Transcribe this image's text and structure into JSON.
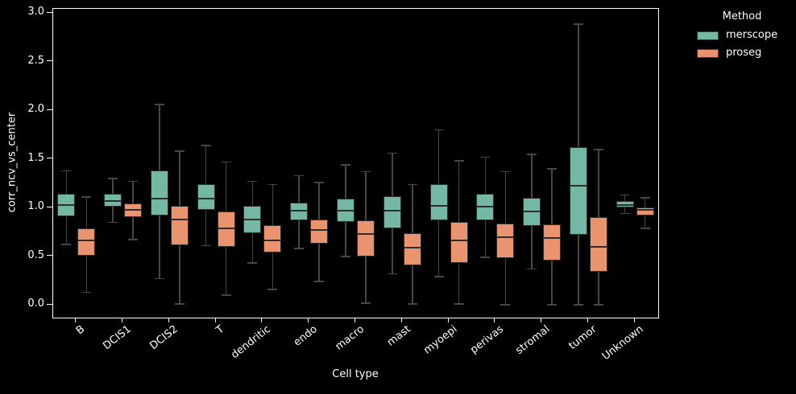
{
  "chart_data": {
    "type": "boxplot",
    "title": "",
    "xlabel": "Cell type",
    "ylabel": "corr_ncv_vs_center",
    "ylim": [
      -0.13,
      3.045
    ],
    "yticks": [
      "0.0",
      "0.5",
      "1.0",
      "1.5",
      "2.0",
      "2.5",
      "3.0"
    ],
    "ytick_values": [
      0.0,
      0.5,
      1.0,
      1.5,
      2.0,
      2.5,
      3.0
    ],
    "grid": false,
    "background_color": "#000000",
    "text_color": "#ffffff",
    "whisker_color": "#474747",
    "box_edge_color": "#2e2e2e",
    "categories": [
      "B",
      "DCIS1",
      "DCIS2",
      "T",
      "dendritic",
      "endo",
      "macro",
      "mast",
      "myoepi",
      "perivas",
      "stromal",
      "tumor",
      "Unknown"
    ],
    "stats_order": [
      "whisker_low",
      "q1",
      "median",
      "q3",
      "whisker_high"
    ],
    "legend": {
      "title": "Method",
      "position": "upper right, outside axes",
      "entries": [
        {
          "name": "merscope",
          "color": "#74b7a4"
        },
        {
          "name": "proseg",
          "color": "#e9946f"
        }
      ]
    },
    "series": [
      {
        "name": "merscope",
        "color": "#74b7a4",
        "values": [
          [
            0.62,
            0.91,
            1.03,
            1.14,
            1.38
          ],
          [
            0.85,
            1.01,
            1.07,
            1.14,
            1.3
          ],
          [
            0.27,
            0.92,
            1.09,
            1.38,
            2.06
          ],
          [
            0.61,
            0.98,
            1.09,
            1.24,
            1.64
          ],
          [
            0.43,
            0.74,
            0.88,
            1.02,
            1.27
          ],
          [
            0.58,
            0.87,
            0.97,
            1.05,
            1.33
          ],
          [
            0.5,
            0.85,
            0.97,
            1.09,
            1.44
          ],
          [
            0.32,
            0.79,
            0.97,
            1.12,
            1.56
          ],
          [
            0.29,
            0.87,
            1.02,
            1.24,
            1.8
          ],
          [
            0.49,
            0.87,
            1.01,
            1.14,
            1.52
          ],
          [
            0.37,
            0.81,
            0.96,
            1.1,
            1.55
          ],
          [
            0.0,
            0.72,
            1.23,
            1.62,
            2.89
          ],
          [
            0.94,
            1.0,
            1.03,
            1.07,
            1.13
          ]
        ]
      },
      {
        "name": "proseg",
        "color": "#e9946f",
        "values": [
          [
            0.13,
            0.51,
            0.66,
            0.79,
            1.11
          ],
          [
            0.67,
            0.9,
            0.98,
            1.04,
            1.27
          ],
          [
            0.01,
            0.61,
            0.88,
            1.02,
            1.58
          ],
          [
            0.1,
            0.6,
            0.79,
            0.96,
            1.47
          ],
          [
            0.16,
            0.54,
            0.66,
            0.82,
            1.24
          ],
          [
            0.24,
            0.63,
            0.77,
            0.88,
            1.26
          ],
          [
            0.02,
            0.5,
            0.73,
            0.87,
            1.37
          ],
          [
            0.01,
            0.41,
            0.59,
            0.74,
            1.24
          ],
          [
            0.01,
            0.43,
            0.66,
            0.85,
            1.48
          ],
          [
            0.0,
            0.48,
            0.7,
            0.84,
            1.37
          ],
          [
            0.0,
            0.46,
            0.69,
            0.83,
            1.4
          ],
          [
            0.0,
            0.34,
            0.6,
            0.9,
            1.6
          ],
          [
            0.79,
            0.92,
            0.98,
            1.0,
            1.1
          ]
        ]
      }
    ]
  }
}
